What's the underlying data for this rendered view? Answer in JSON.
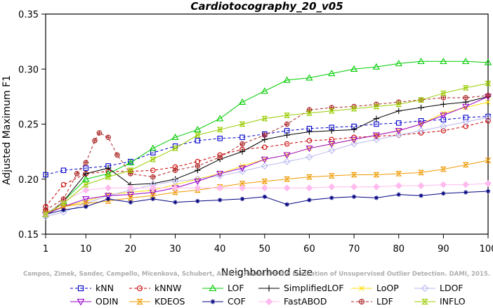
{
  "chart_data": {
    "type": "line",
    "title": "Cardiotocography_20_v05",
    "xlabel": "Neighborhood size",
    "ylabel": "Adjusted Maximum F1",
    "xlim": [
      1,
      100
    ],
    "ylim": [
      0.15,
      0.35
    ],
    "xticks": [
      1,
      10,
      20,
      30,
      40,
      50,
      60,
      70,
      80,
      90,
      100
    ],
    "yticks": [
      0.15,
      0.2,
      0.25,
      0.3,
      0.35
    ],
    "grid": false,
    "legend_placement": "bottom",
    "watermark": "Campos, Zimek, Sander, Campello, Micenková, Schubert, Assent, Houle: On the Evaluation of Unsupervised Outlier Detection. DAMI, 2015.",
    "series": [
      {
        "name": "kNN",
        "color": "#0000cc",
        "marker": "square",
        "dashed": true,
        "x": [
          1,
          5,
          10,
          15,
          20,
          25,
          30,
          35,
          40,
          45,
          50,
          55,
          60,
          65,
          70,
          75,
          80,
          85,
          90,
          95,
          100
        ],
        "y": [
          0.204,
          0.208,
          0.21,
          0.212,
          0.216,
          0.224,
          0.23,
          0.235,
          0.237,
          0.238,
          0.241,
          0.244,
          0.246,
          0.247,
          0.248,
          0.25,
          0.251,
          0.253,
          0.254,
          0.256,
          0.257
        ]
      },
      {
        "name": "kNNW",
        "color": "#cc0000",
        "marker": "circle",
        "dashed": true,
        "x": [
          1,
          5,
          10,
          15,
          20,
          25,
          30,
          35,
          40,
          45,
          50,
          55,
          60,
          65,
          70,
          75,
          80,
          85,
          90,
          95,
          100
        ],
        "y": [
          0.175,
          0.195,
          0.205,
          0.207,
          0.207,
          0.208,
          0.211,
          0.216,
          0.222,
          0.227,
          0.229,
          0.232,
          0.235,
          0.236,
          0.238,
          0.239,
          0.24,
          0.242,
          0.244,
          0.248,
          0.253
        ]
      },
      {
        "name": "LOF",
        "color": "#00cc00",
        "marker": "triangle-up",
        "dashed": false,
        "x": [
          1,
          5,
          10,
          15,
          20,
          25,
          30,
          35,
          40,
          45,
          50,
          55,
          60,
          65,
          70,
          75,
          80,
          85,
          90,
          95,
          100
        ],
        "y": [
          0.168,
          0.18,
          0.2,
          0.205,
          0.215,
          0.228,
          0.238,
          0.245,
          0.255,
          0.27,
          0.28,
          0.29,
          0.292,
          0.296,
          0.3,
          0.302,
          0.305,
          0.307,
          0.307,
          0.307,
          0.306
        ]
      },
      {
        "name": "SimplifiedLOF",
        "color": "#000000",
        "marker": "plus",
        "dashed": false,
        "x": [
          1,
          5,
          10,
          15,
          20,
          25,
          30,
          35,
          40,
          45,
          50,
          55,
          60,
          65,
          70,
          75,
          80,
          85,
          90,
          95,
          100
        ],
        "y": [
          0.166,
          0.18,
          0.205,
          0.21,
          0.195,
          0.196,
          0.2,
          0.208,
          0.218,
          0.225,
          0.236,
          0.24,
          0.243,
          0.244,
          0.245,
          0.255,
          0.262,
          0.265,
          0.268,
          0.27,
          0.275
        ]
      },
      {
        "name": "LoOP",
        "color": "#ffdd00",
        "marker": "x",
        "dashed": false,
        "x": [
          1,
          5,
          10,
          15,
          20,
          25,
          30,
          35,
          40,
          45,
          50,
          55,
          60,
          65,
          70,
          75,
          80,
          85,
          90,
          95,
          100
        ],
        "y": [
          0.168,
          0.175,
          0.18,
          0.186,
          0.188,
          0.19,
          0.195,
          0.2,
          0.205,
          0.212,
          0.218,
          0.222,
          0.228,
          0.232,
          0.236,
          0.24,
          0.244,
          0.25,
          0.26,
          0.265,
          0.27
        ]
      },
      {
        "name": "LDOF",
        "color": "#b8b8f0",
        "marker": "diamond",
        "dashed": false,
        "x": [
          1,
          5,
          10,
          15,
          20,
          25,
          30,
          35,
          40,
          45,
          50,
          55,
          60,
          65,
          70,
          75,
          80,
          85,
          90,
          95,
          100
        ],
        "y": [
          0.166,
          0.17,
          0.178,
          0.185,
          0.19,
          0.195,
          0.198,
          0.2,
          0.203,
          0.207,
          0.212,
          0.216,
          0.22,
          0.226,
          0.232,
          0.236,
          0.24,
          0.244,
          0.248,
          0.252,
          0.256
        ]
      },
      {
        "name": "ODIN",
        "color": "#9900cc",
        "marker": "triangle-down",
        "dashed": false,
        "x": [
          1,
          5,
          10,
          15,
          20,
          25,
          30,
          35,
          40,
          45,
          50,
          55,
          60,
          65,
          70,
          75,
          80,
          85,
          90,
          95,
          100
        ],
        "y": [
          0.168,
          0.175,
          0.182,
          0.185,
          0.186,
          0.188,
          0.192,
          0.198,
          0.205,
          0.21,
          0.218,
          0.222,
          0.228,
          0.232,
          0.236,
          0.24,
          0.244,
          0.25,
          0.258,
          0.266,
          0.275
        ]
      },
      {
        "name": "KDEOS",
        "color": "#ee9900",
        "marker": "hourglass",
        "dashed": false,
        "x": [
          1,
          5,
          10,
          15,
          20,
          25,
          30,
          35,
          40,
          45,
          50,
          55,
          60,
          65,
          70,
          75,
          80,
          85,
          90,
          95,
          100
        ],
        "y": [
          0.17,
          0.175,
          0.178,
          0.18,
          0.183,
          0.185,
          0.188,
          0.19,
          0.193,
          0.196,
          0.198,
          0.2,
          0.202,
          0.203,
          0.204,
          0.204,
          0.205,
          0.206,
          0.209,
          0.213,
          0.217
        ]
      },
      {
        "name": "COF",
        "color": "#000080",
        "marker": "asterisk",
        "dashed": false,
        "x": [
          1,
          5,
          10,
          15,
          20,
          25,
          30,
          35,
          40,
          45,
          50,
          55,
          60,
          65,
          70,
          75,
          80,
          85,
          90,
          95,
          100
        ],
        "y": [
          0.168,
          0.172,
          0.175,
          0.182,
          0.179,
          0.182,
          0.179,
          0.18,
          0.181,
          0.182,
          0.184,
          0.177,
          0.181,
          0.183,
          0.184,
          0.183,
          0.186,
          0.185,
          0.187,
          0.188,
          0.189
        ]
      },
      {
        "name": "FastABOD",
        "color": "#ffbbee",
        "marker": "diamond-filled",
        "dashed": false,
        "x": [
          1,
          5,
          10,
          15,
          20,
          25,
          30,
          35,
          40,
          45,
          50,
          55,
          60,
          65,
          70,
          75,
          80,
          85,
          90,
          95,
          100
        ],
        "y": [
          0.168,
          0.18,
          0.19,
          0.192,
          0.192,
          0.192,
          0.192,
          0.192,
          0.192,
          0.192,
          0.192,
          0.192,
          0.192,
          0.193,
          0.193,
          0.193,
          0.194,
          0.194,
          0.195,
          0.195,
          0.196
        ]
      },
      {
        "name": "LDF",
        "color": "#aa2222",
        "marker": "circle-plus",
        "dashed": true,
        "x": [
          1,
          5,
          8,
          10,
          12,
          13,
          15,
          17,
          20,
          25,
          30,
          35,
          40,
          45,
          50,
          55,
          60,
          65,
          70,
          75,
          80,
          85,
          90,
          95,
          100
        ],
        "y": [
          0.172,
          0.182,
          0.205,
          0.215,
          0.235,
          0.242,
          0.238,
          0.222,
          0.205,
          0.202,
          0.208,
          0.212,
          0.22,
          0.232,
          0.24,
          0.25,
          0.263,
          0.265,
          0.266,
          0.268,
          0.27,
          0.272,
          0.274,
          0.274,
          0.276
        ]
      },
      {
        "name": "INFLO",
        "color": "#99cc00",
        "marker": "hourglass-x",
        "dashed": false,
        "x": [
          1,
          5,
          10,
          15,
          20,
          25,
          30,
          35,
          40,
          45,
          50,
          55,
          60,
          65,
          70,
          75,
          80,
          85,
          90,
          95,
          100
        ],
        "y": [
          0.168,
          0.178,
          0.195,
          0.202,
          0.208,
          0.218,
          0.228,
          0.24,
          0.245,
          0.25,
          0.255,
          0.258,
          0.26,
          0.262,
          0.264,
          0.266,
          0.268,
          0.272,
          0.278,
          0.283,
          0.287
        ]
      }
    ]
  }
}
